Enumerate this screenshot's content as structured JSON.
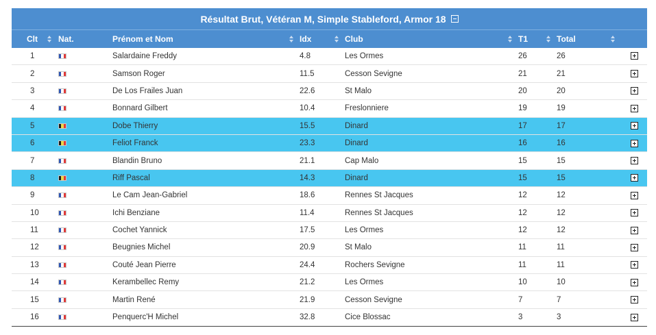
{
  "title": "Résultat Brut, Vétéran M, Simple Stableford, Armor 18",
  "columns": {
    "clt": "Clt",
    "nat": "Nat.",
    "name": "Prénom et Nom",
    "idx": "Idx",
    "club": "Club",
    "t1": "T1",
    "total": "Total"
  },
  "colors": {
    "header_bg": "#4d8ed0",
    "highlight_bg": "#48c6f0",
    "flag_fr": [
      "#2f56b4",
      "#ffffff",
      "#e03a3a"
    ],
    "flag_be": [
      "#1a1a1a",
      "#e8d84a",
      "#e03a3a"
    ]
  },
  "rows": [
    {
      "clt": "1",
      "flag": "flag-fr",
      "name": "Salardaine Freddy",
      "idx": "4.8",
      "club": "Les Ormes",
      "t1": "26",
      "total": "26",
      "highlighted": false
    },
    {
      "clt": "2",
      "flag": "flag-fr",
      "name": "Samson Roger",
      "idx": "11.5",
      "club": "Cesson Sevigne",
      "t1": "21",
      "total": "21",
      "highlighted": false
    },
    {
      "clt": "3",
      "flag": "flag-fr",
      "name": "De Los Frailes Juan",
      "idx": "22.6",
      "club": "St Malo",
      "t1": "20",
      "total": "20",
      "highlighted": false
    },
    {
      "clt": "4",
      "flag": "flag-fr",
      "name": "Bonnard Gilbert",
      "idx": "10.4",
      "club": "Freslonniere",
      "t1": "19",
      "total": "19",
      "highlighted": false
    },
    {
      "clt": "5",
      "flag": "flag-be",
      "name": "Dobe Thierry",
      "idx": "15.5",
      "club": "Dinard",
      "t1": "17",
      "total": "17",
      "highlighted": true
    },
    {
      "clt": "6",
      "flag": "flag-be",
      "name": "Feliot Franck",
      "idx": "23.3",
      "club": "Dinard",
      "t1": "16",
      "total": "16",
      "highlighted": true
    },
    {
      "clt": "7",
      "flag": "flag-fr",
      "name": "Blandin Bruno",
      "idx": "21.1",
      "club": "Cap Malo",
      "t1": "15",
      "total": "15",
      "highlighted": false
    },
    {
      "clt": "8",
      "flag": "flag-be",
      "name": "Riff Pascal",
      "idx": "14.3",
      "club": "Dinard",
      "t1": "15",
      "total": "15",
      "highlighted": true
    },
    {
      "clt": "9",
      "flag": "flag-fr",
      "name": "Le Cam Jean-Gabriel",
      "idx": "18.6",
      "club": "Rennes St Jacques",
      "t1": "12",
      "total": "12",
      "highlighted": false
    },
    {
      "clt": "10",
      "flag": "flag-fr",
      "name": "Ichi Benziane",
      "idx": "11.4",
      "club": "Rennes St Jacques",
      "t1": "12",
      "total": "12",
      "highlighted": false
    },
    {
      "clt": "11",
      "flag": "flag-fr",
      "name": "Cochet Yannick",
      "idx": "17.5",
      "club": "Les Ormes",
      "t1": "12",
      "total": "12",
      "highlighted": false
    },
    {
      "clt": "12",
      "flag": "flag-fr",
      "name": "Beugnies Michel",
      "idx": "20.9",
      "club": "St Malo",
      "t1": "11",
      "total": "11",
      "highlighted": false
    },
    {
      "clt": "13",
      "flag": "flag-fr",
      "name": "Couté Jean Pierre",
      "idx": "24.4",
      "club": "Rochers Sevigne",
      "t1": "11",
      "total": "11",
      "highlighted": false
    },
    {
      "clt": "14",
      "flag": "flag-fr",
      "name": "Kerambellec Remy",
      "idx": "21.2",
      "club": "Les Ormes",
      "t1": "10",
      "total": "10",
      "highlighted": false
    },
    {
      "clt": "15",
      "flag": "flag-fr",
      "name": "Martin René",
      "idx": "21.9",
      "club": "Cesson Sevigne",
      "t1": "7",
      "total": "7",
      "highlighted": false
    },
    {
      "clt": "16",
      "flag": "flag-fr",
      "name": "Penquerc'H Michel",
      "idx": "32.8",
      "club": "Cice Blossac",
      "t1": "3",
      "total": "3",
      "highlighted": false
    }
  ]
}
